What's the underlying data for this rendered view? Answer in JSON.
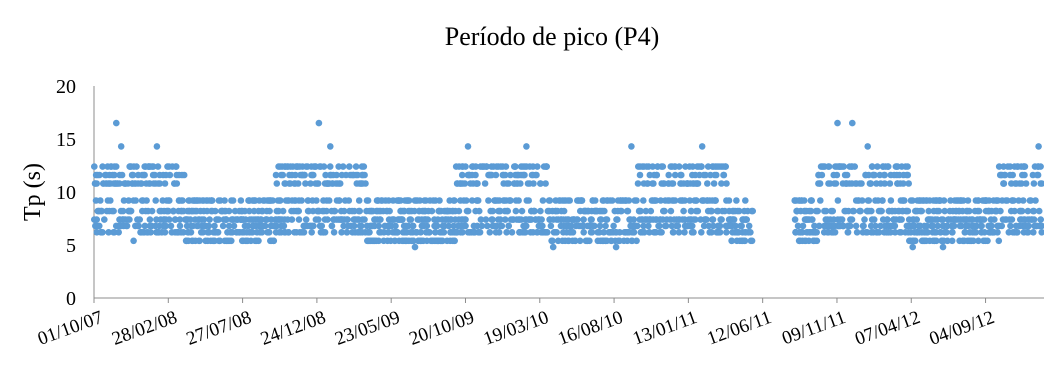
{
  "chart_data": {
    "type": "scatter",
    "title": "Período de pico (P4)",
    "ylabel": "Tp (s)",
    "xlabel": "",
    "ylim": [
      0,
      20
    ],
    "yticks": [
      "0",
      "5",
      "10",
      "15",
      "20"
    ],
    "xlim": [
      "2007-10-01",
      "2012-12-31"
    ],
    "xticks": [
      "01/10/07",
      "28/02/08",
      "27/07/08",
      "24/12/08",
      "23/05/09",
      "20/10/09",
      "19/03/10",
      "16/08/10",
      "13/01/11",
      "12/06/11",
      "09/11/11",
      "07/04/12",
      "04/09/12"
    ],
    "grid": false,
    "legend": "none",
    "marker_color": "#5b9bd5",
    "tp_levels_s": [
      4.8,
      5.4,
      6.2,
      6.8,
      7.4,
      8.2,
      9.2,
      10.8,
      11.6,
      12.4,
      13.4,
      14.3,
      16.5
    ],
    "data_gap": [
      "2011-05-24",
      "2011-08-15"
    ],
    "series": [
      {
        "points": [
          [
            "2007-10-05",
            9.2
          ],
          [
            "2007-10-20",
            10.8
          ],
          [
            "2007-11-05",
            12.4
          ],
          [
            "2007-11-15",
            16.5
          ],
          [
            "2007-11-25",
            14.3
          ],
          [
            "2007-12-10",
            8.2
          ],
          [
            "2007-12-20",
            5.4
          ],
          [
            "2008-01-05",
            10.8
          ],
          [
            "2008-01-20",
            12.4
          ],
          [
            "2008-02-05",
            14.3
          ],
          [
            "2008-02-25",
            9.2
          ],
          [
            "2008-03-15",
            12.4
          ],
          [
            "2008-04-10",
            8.2
          ],
          [
            "2008-05-01",
            7.4
          ],
          [
            "2008-06-01",
            6.2
          ],
          [
            "2008-07-05",
            7.4
          ],
          [
            "2008-08-10",
            6.2
          ],
          [
            "2008-09-15",
            9.2
          ],
          [
            "2008-10-20",
            10.8
          ],
          [
            "2008-11-25",
            12.4
          ],
          [
            "2008-12-28",
            16.5
          ],
          [
            "2009-01-20",
            14.3
          ],
          [
            "2009-02-15",
            12.4
          ],
          [
            "2009-03-20",
            10.8
          ],
          [
            "2009-04-25",
            8.2
          ],
          [
            "2009-05-30",
            6.2
          ],
          [
            "2009-06-20",
            5.4
          ],
          [
            "2009-07-10",
            4.8
          ],
          [
            "2009-08-20",
            6.2
          ],
          [
            "2009-09-25",
            8.2
          ],
          [
            "2009-10-25",
            14.3
          ],
          [
            "2009-12-01",
            12.4
          ],
          [
            "2010-01-15",
            10.8
          ],
          [
            "2010-02-20",
            14.3
          ],
          [
            "2010-03-20",
            10.8
          ],
          [
            "2010-04-15",
            4.8
          ],
          [
            "2010-05-25",
            6.2
          ],
          [
            "2010-06-25",
            8.2
          ],
          [
            "2010-07-25",
            5.4
          ],
          [
            "2010-08-20",
            4.8
          ],
          [
            "2010-09-20",
            14.3
          ],
          [
            "2010-10-25",
            12.4
          ],
          [
            "2010-11-25",
            10.8
          ],
          [
            "2010-12-25",
            6.2
          ],
          [
            "2011-02-10",
            14.3
          ],
          [
            "2011-03-20",
            12.4
          ],
          [
            "2011-04-20",
            9.2
          ],
          [
            "2011-08-20",
            8.2
          ],
          [
            "2011-09-15",
            6.2
          ],
          [
            "2011-10-15",
            12.4
          ],
          [
            "2011-11-10",
            16.5
          ],
          [
            "2011-12-10",
            16.5
          ],
          [
            "2012-01-10",
            14.3
          ],
          [
            "2012-02-10",
            12.4
          ],
          [
            "2012-03-10",
            10.8
          ],
          [
            "2012-04-10",
            4.8
          ],
          [
            "2012-05-10",
            6.2
          ],
          [
            "2012-06-10",
            4.8
          ],
          [
            "2012-07-20",
            5.4
          ],
          [
            "2012-09-05",
            8.2
          ],
          [
            "2012-10-10",
            10.8
          ],
          [
            "2012-11-20",
            12.4
          ],
          [
            "2012-12-20",
            14.3
          ]
        ]
      }
    ]
  }
}
